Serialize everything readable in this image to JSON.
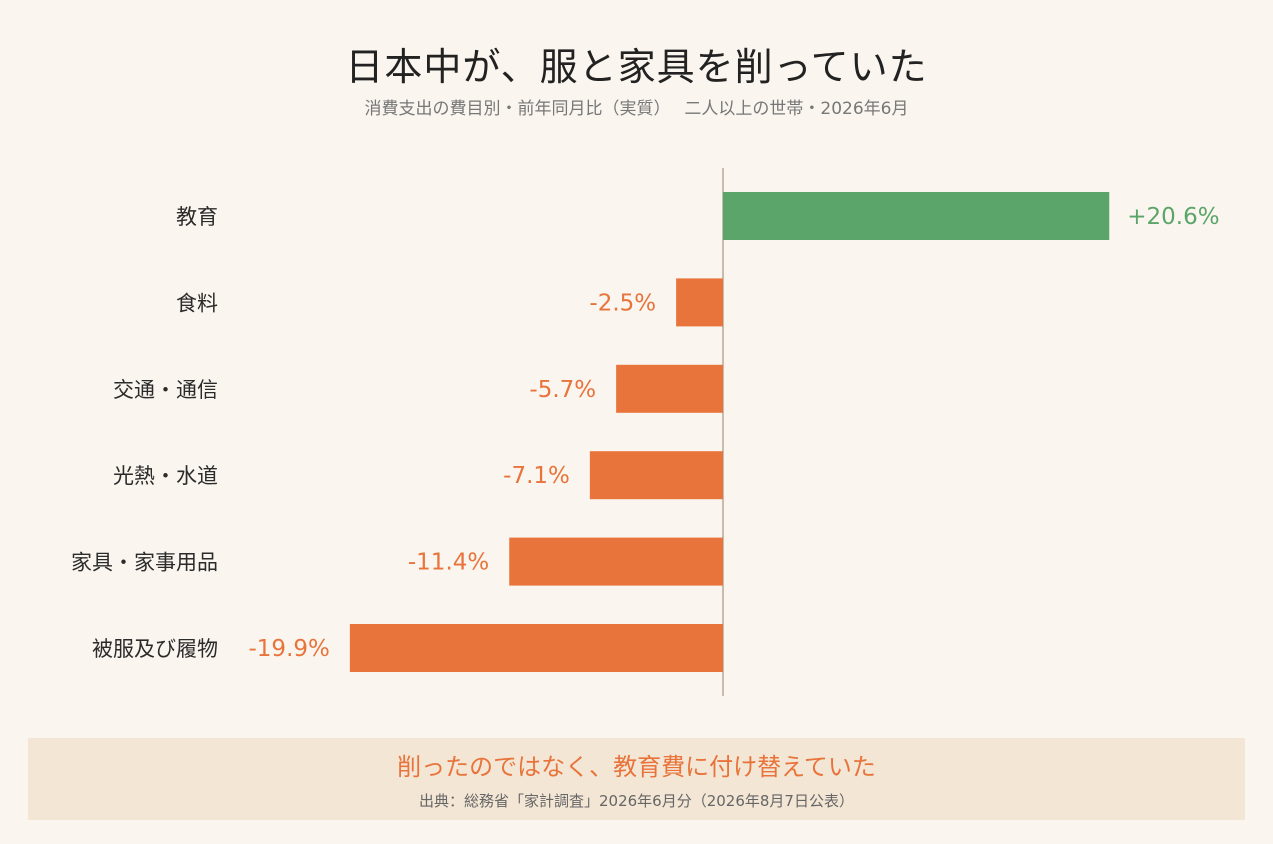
{
  "header": {
    "title": "日本中が、服と家具を削っていた",
    "subtitle": "消費支出の費目別・前年同月比（実質）　 二人以上の世帯・2026年6月"
  },
  "colors": {
    "positive": "#5ba56a",
    "negative": "#e8743b",
    "axis": "#b8aa98",
    "background": "#faf5ee",
    "footer_background": "#f3e6d5"
  },
  "chart_data": {
    "type": "bar",
    "orientation": "horizontal",
    "categories": [
      "教育",
      "食料",
      "交通・通信",
      "光熱・水道",
      "家具・家事用品",
      "被服及び履物"
    ],
    "values": [
      20.6,
      -2.5,
      -5.7,
      -7.1,
      -11.4,
      -19.9
    ],
    "value_labels": [
      "+20.6%",
      "-2.5%",
      "-5.7%",
      "-7.1%",
      "-11.4%",
      "-19.9%"
    ],
    "unit": "%",
    "title": "日本中が、服と家具を削っていた",
    "xlabel": "",
    "ylabel": "",
    "grid": false,
    "legend": "none"
  },
  "footer": {
    "message": "削ったのではなく、教育費に付け替えていた",
    "source": "出典：総務省「家計調査」2026年6月分（2026年8月7日公表）"
  }
}
